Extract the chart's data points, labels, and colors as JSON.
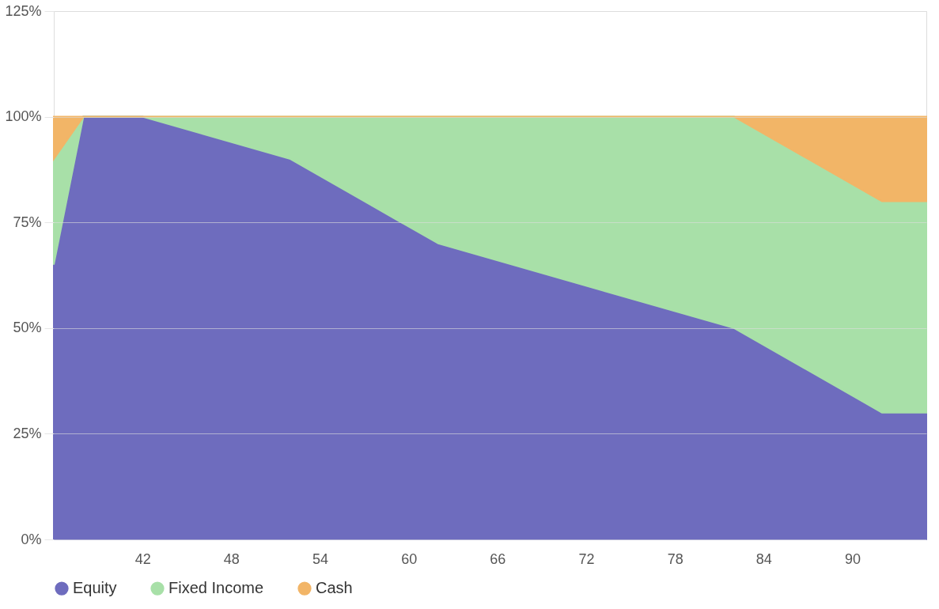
{
  "chart_data": {
    "type": "area",
    "stacked": true,
    "x": [
      36,
      38,
      42,
      52,
      62,
      82,
      92,
      95
    ],
    "series": [
      {
        "name": "Equity",
        "color": "#6e6cbe",
        "values": [
          65,
          100,
          100,
          90,
          70,
          50,
          30,
          30
        ]
      },
      {
        "name": "Fixed Income",
        "color": "#a8e0a8",
        "values": [
          25,
          0,
          0,
          10,
          30,
          50,
          50,
          50
        ]
      },
      {
        "name": "Cash",
        "color": "#f2b567",
        "values": [
          10,
          0,
          0,
          0,
          0,
          0,
          20,
          20
        ]
      }
    ],
    "xlim": [
      36,
      95
    ],
    "xticks": [
      42,
      48,
      54,
      60,
      66,
      72,
      78,
      84,
      90
    ],
    "ylim": [
      0,
      125
    ],
    "yticks": [
      {
        "value": 0,
        "label": "0%"
      },
      {
        "value": 25,
        "label": "25%"
      },
      {
        "value": 50,
        "label": "50%"
      },
      {
        "value": 75,
        "label": "75%"
      },
      {
        "value": 100,
        "label": "100%"
      },
      {
        "value": 125,
        "label": "125%"
      }
    ],
    "grid": "y",
    "legend": "bottom"
  }
}
